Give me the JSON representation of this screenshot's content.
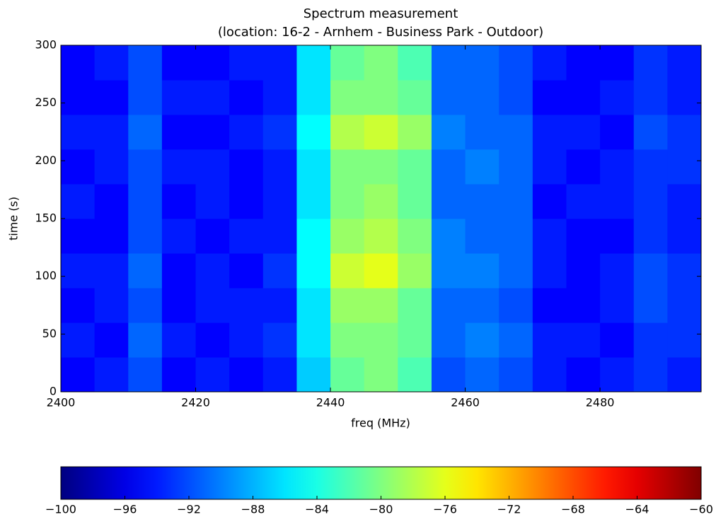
{
  "chart_data": {
    "type": "heatmap",
    "title": "Spectrum measurement",
    "subtitle": "(location: 16-2 - Arnhem - Business Park - Outdoor)",
    "x_label": "freq (MHz)",
    "y_label": "time (s)",
    "xbins": [
      2400,
      2405,
      2410,
      2415,
      2420,
      2425,
      2430,
      2435,
      2440,
      2445,
      2450,
      2455,
      2460,
      2465,
      2470,
      2475,
      2480,
      2485,
      2490,
      2495
    ],
    "ybins": [
      0,
      30,
      60,
      90,
      120,
      150,
      180,
      210,
      240,
      270,
      300
    ],
    "z": [
      [
        -95,
        -94,
        -92,
        -95,
        -94,
        -95,
        -94,
        -87,
        -81,
        -80,
        -82,
        -92,
        -91,
        -92,
        -94,
        -95,
        -94,
        -93,
        -94
      ],
      [
        -94,
        -95,
        -91,
        -94,
        -95,
        -94,
        -93,
        -86,
        -80,
        -80,
        -81,
        -91,
        -90,
        -91,
        -94,
        -94,
        -95,
        -93,
        -93
      ],
      [
        -95,
        -94,
        -92,
        -95,
        -94,
        -94,
        -94,
        -86,
        -79,
        -79,
        -81,
        -91,
        -91,
        -92,
        -95,
        -95,
        -94,
        -92,
        -93
      ],
      [
        -94,
        -94,
        -91,
        -95,
        -94,
        -95,
        -93,
        -85,
        -77,
        -76,
        -79,
        -90,
        -90,
        -91,
        -94,
        -95,
        -94,
        -92,
        -93
      ],
      [
        -95,
        -95,
        -92,
        -94,
        -95,
        -94,
        -94,
        -85,
        -79,
        -78,
        -80,
        -90,
        -91,
        -91,
        -94,
        -95,
        -95,
        -93,
        -94
      ],
      [
        -94,
        -95,
        -92,
        -95,
        -94,
        -95,
        -94,
        -86,
        -80,
        -79,
        -81,
        -91,
        -91,
        -91,
        -95,
        -94,
        -94,
        -93,
        -94
      ],
      [
        -95,
        -94,
        -92,
        -94,
        -94,
        -95,
        -94,
        -86,
        -80,
        -80,
        -81,
        -91,
        -90,
        -91,
        -94,
        -95,
        -94,
        -93,
        -93
      ],
      [
        -94,
        -94,
        -91,
        -95,
        -95,
        -94,
        -93,
        -85,
        -78,
        -77,
        -79,
        -90,
        -91,
        -91,
        -94,
        -94,
        -95,
        -92,
        -93
      ],
      [
        -95,
        -95,
        -92,
        -94,
        -94,
        -95,
        -94,
        -86,
        -80,
        -80,
        -81,
        -91,
        -91,
        -92,
        -95,
        -95,
        -94,
        -93,
        -94
      ],
      [
        -95,
        -94,
        -92,
        -95,
        -95,
        -94,
        -94,
        -86,
        -81,
        -80,
        -82,
        -91,
        -91,
        -92,
        -94,
        -95,
        -95,
        -93,
        -94
      ]
    ],
    "colormap": "jet",
    "xlim": [
      2400,
      2495
    ],
    "ylim": [
      0,
      300
    ],
    "xticks": [
      2400,
      2420,
      2440,
      2460,
      2480
    ],
    "yticks": [
      0,
      50,
      100,
      150,
      200,
      250,
      300
    ],
    "clim": [
      -100,
      -60
    ],
    "cticks": [
      {
        "value": -100,
        "label": "−100"
      },
      {
        "value": -96,
        "label": "−96"
      },
      {
        "value": -92,
        "label": "−92"
      },
      {
        "value": -88,
        "label": "−88"
      },
      {
        "value": -84,
        "label": "−84"
      },
      {
        "value": -80,
        "label": "−80"
      },
      {
        "value": -76,
        "label": "−76"
      },
      {
        "value": -72,
        "label": "−72"
      },
      {
        "value": -68,
        "label": "−68"
      },
      {
        "value": -64,
        "label": "−64"
      },
      {
        "value": -60,
        "label": "−60"
      }
    ]
  }
}
